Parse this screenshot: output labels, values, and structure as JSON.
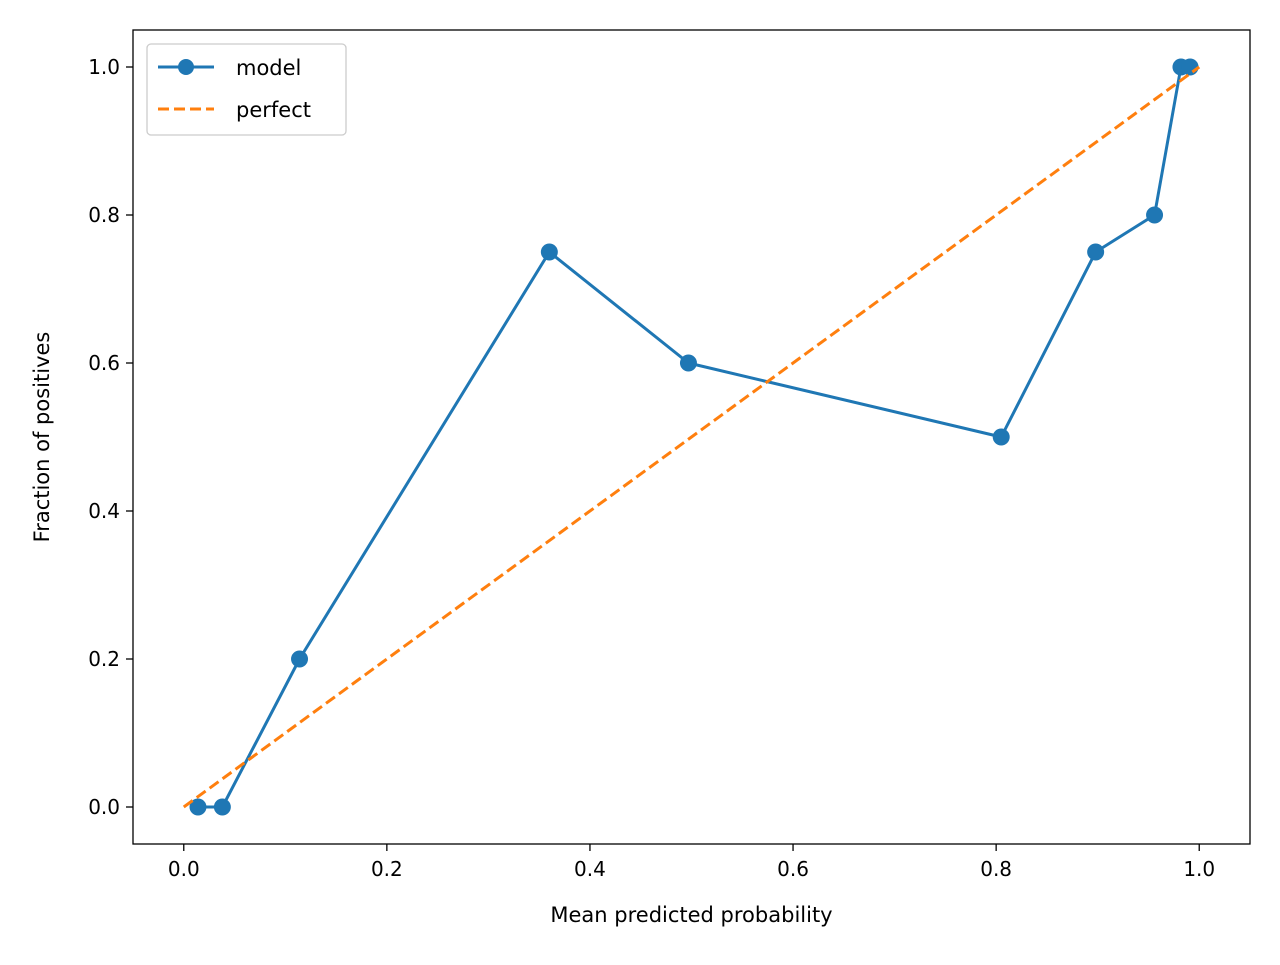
{
  "chart_data": {
    "type": "line",
    "title": "",
    "xlabel": "Mean predicted probability",
    "ylabel": "Fraction of positives",
    "xlim": [
      -0.05,
      1.05
    ],
    "ylim": [
      -0.05,
      1.05
    ],
    "xticks": [
      "0.0",
      "0.2",
      "0.4",
      "0.6",
      "0.8",
      "1.0"
    ],
    "yticks": [
      "0.0",
      "0.2",
      "0.4",
      "0.6",
      "0.8",
      "1.0"
    ],
    "grid": false,
    "legend_position": "top-left",
    "series": [
      {
        "name": "model",
        "color": "#1f77b4",
        "style": "solid",
        "marker": "circle",
        "x": [
          0.014,
          0.038,
          0.114,
          0.36,
          0.497,
          0.805,
          0.898,
          0.956,
          0.982,
          0.991
        ],
        "y": [
          0.0,
          0.0,
          0.2,
          0.75,
          0.6,
          0.5,
          0.75,
          0.8,
          1.0,
          1.0
        ]
      },
      {
        "name": "perfect",
        "color": "#ff7f0e",
        "style": "dashed",
        "marker": "none",
        "x": [
          0.0,
          1.0
        ],
        "y": [
          0.0,
          1.0
        ]
      }
    ]
  }
}
